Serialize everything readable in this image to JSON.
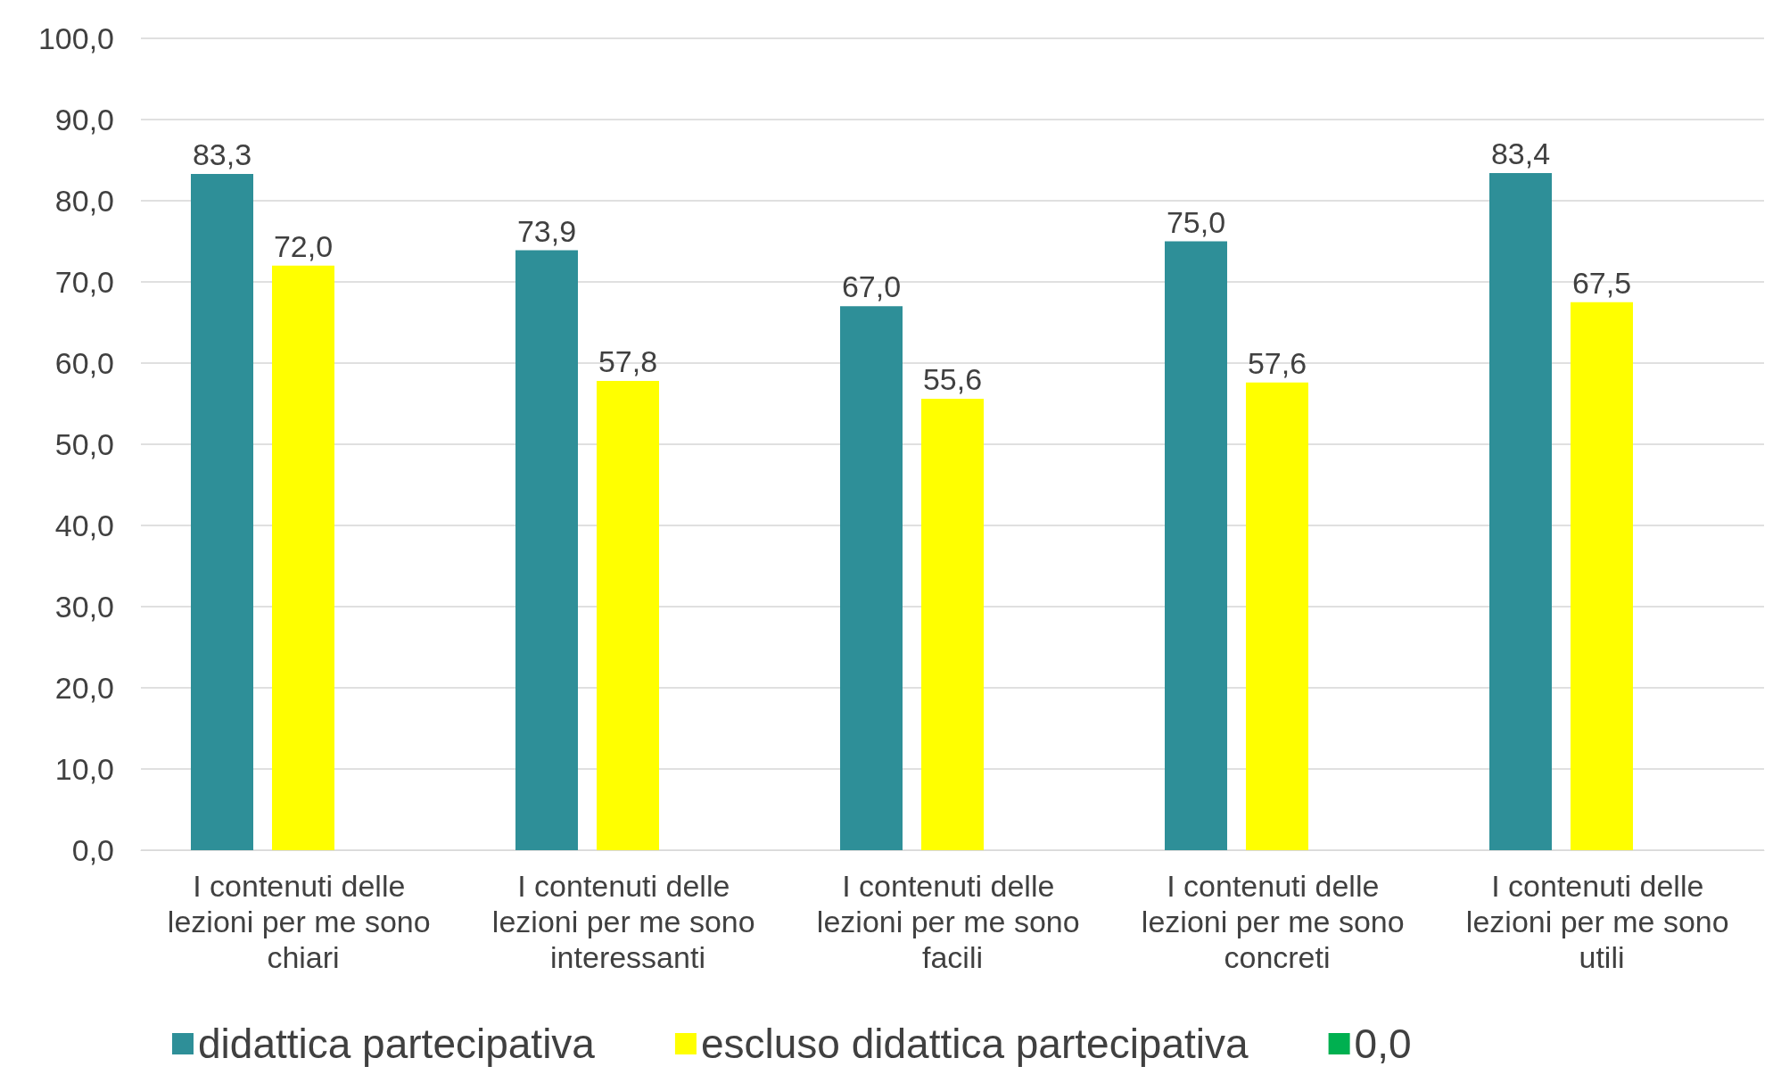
{
  "chart_data": {
    "type": "bar",
    "categories": [
      "I contenuti delle lezioni per me sono chiari",
      "I contenuti delle lezioni per me sono interessanti",
      "I contenuti delle lezioni per me sono facili",
      "I contenuti delle lezioni per me sono concreti",
      "I contenuti delle lezioni per me sono utili"
    ],
    "series": [
      {
        "name": "didattica partecipativa",
        "color": "#2e8f98",
        "values": [
          83.3,
          73.9,
          67.0,
          75.0,
          83.4
        ],
        "value_labels": [
          "83,3",
          "73,9",
          "67,0",
          "75,0",
          "83,4"
        ]
      },
      {
        "name": "escluso didattica partecipativa",
        "color": "#ffff00",
        "values": [
          72.0,
          57.8,
          55.6,
          57.6,
          67.5
        ],
        "value_labels": [
          "72,0",
          "57,8",
          "55,6",
          "57,6",
          "67,5"
        ]
      },
      {
        "name": "0,0",
        "color": "#00b050",
        "values": [
          0,
          0,
          0,
          0,
          0
        ]
      }
    ],
    "ylim": [
      0,
      100
    ],
    "yticks": [
      {
        "value": 0,
        "label": "0,0"
      },
      {
        "value": 10,
        "label": "10,0"
      },
      {
        "value": 20,
        "label": "20,0"
      },
      {
        "value": 30,
        "label": "30,0"
      },
      {
        "value": 40,
        "label": "40,0"
      },
      {
        "value": 50,
        "label": "50,0"
      },
      {
        "value": 60,
        "label": "60,0"
      },
      {
        "value": 70,
        "label": "70,0"
      },
      {
        "value": 80,
        "label": "80,0"
      },
      {
        "value": 90,
        "label": "90,0"
      },
      {
        "value": 100,
        "label": "100,0"
      }
    ],
    "grid": true,
    "legend": "bottom"
  }
}
